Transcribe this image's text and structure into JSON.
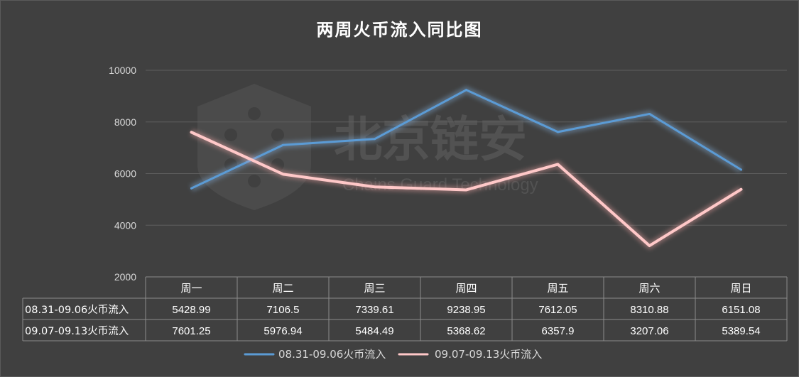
{
  "chart_data": {
    "type": "line",
    "title": "两周火币流入同比图",
    "categories": [
      "周一",
      "周二",
      "周三",
      "周四",
      "周五",
      "周六",
      "周日"
    ],
    "series": [
      {
        "name": "08.31-09.06火币流入",
        "values": [
          5428.99,
          7106.5,
          7339.61,
          9238.95,
          7612.05,
          8310.88,
          6151.08
        ]
      },
      {
        "name": "09.07-09.13火币流入",
        "values": [
          7601.25,
          5976.94,
          5484.49,
          5368.62,
          6357.9,
          3207.06,
          5389.54
        ]
      }
    ],
    "value_labels": [
      [
        "5428.99",
        "7106.5",
        "7339.61",
        "9238.95",
        "7612.05",
        "8310.88",
        "6151.08"
      ],
      [
        "7601.25",
        "5976.94",
        "5484.49",
        "5368.62",
        "6357.9",
        "3207.06",
        "5389.54"
      ]
    ],
    "ylim": [
      2000,
      10000
    ],
    "yticks": [
      "10000",
      "8000",
      "6000",
      "4000",
      "2000"
    ],
    "grid": true,
    "legend": "bottom",
    "data_table": true,
    "colors": {
      "series1": "#5b9bd5",
      "series2": "#ffc8c8",
      "background": "#404040",
      "grid": "#5e5e5e"
    }
  },
  "watermark": {
    "text_cn": "北京链安",
    "text_en": "Chains Guard Technology"
  }
}
